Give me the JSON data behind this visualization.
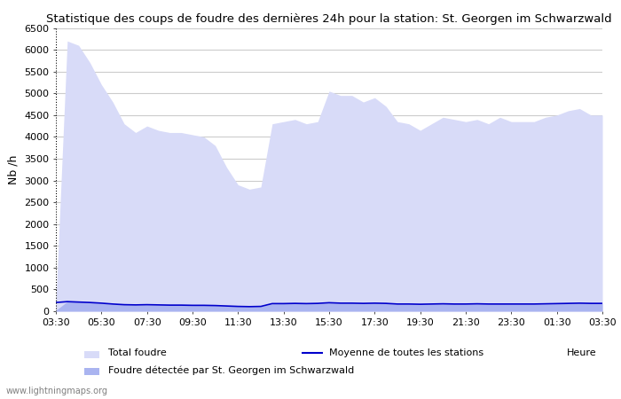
{
  "title": "Statistique des coups de foudre des dernières 24h pour la station: St. Georgen im Schwarzwald",
  "xlabel": "Heure",
  "ylabel": "Nb /h",
  "ylim": [
    0,
    6500
  ],
  "yticks": [
    0,
    500,
    1000,
    1500,
    2000,
    2500,
    3000,
    3500,
    4000,
    4500,
    5000,
    5500,
    6000,
    6500
  ],
  "xtick_labels": [
    "03:30",
    "05:30",
    "07:30",
    "09:30",
    "11:30",
    "13:30",
    "15:30",
    "17:30",
    "19:30",
    "21:30",
    "23:30",
    "01:30",
    "03:30"
  ],
  "bg_color": "#ffffff",
  "plot_bg_color": "#ffffff",
  "grid_color": "#cccccc",
  "fill_total_color": "#d8dbf8",
  "fill_station_color": "#aab4f0",
  "line_moyenne_color": "#0000cc",
  "watermark": "www.lightningmaps.org",
  "legend": {
    "total_foudre": "Total foudre",
    "moyenne": "Moyenne de toutes les stations",
    "station": "Foudre détectée par St. Georgen im Schwarzwald"
  },
  "x_values": [
    0,
    1,
    2,
    3,
    4,
    5,
    6,
    7,
    8,
    9,
    10,
    11,
    12,
    13,
    14,
    15,
    16,
    17,
    18,
    19,
    20,
    21,
    22,
    23,
    24,
    25,
    26,
    27,
    28,
    29,
    30,
    31,
    32,
    33,
    34,
    35,
    36,
    37,
    38,
    39,
    40,
    41,
    42,
    43,
    44,
    45,
    46,
    47,
    48
  ],
  "total_foudre": [
    200,
    6200,
    6100,
    5700,
    5200,
    4800,
    4300,
    4100,
    4250,
    4150,
    4100,
    4100,
    4050,
    4000,
    3800,
    3300,
    2900,
    2800,
    2850,
    4300,
    4350,
    4400,
    4300,
    4350,
    5050,
    4950,
    4950,
    4800,
    4900,
    4700,
    4350,
    4300,
    4150,
    4300,
    4450,
    4400,
    4350,
    4400,
    4300,
    4450,
    4350,
    4350,
    4350,
    4450,
    4500,
    4600,
    4650,
    4500,
    4500
  ],
  "station_foudre": [
    20,
    220,
    210,
    200,
    180,
    160,
    150,
    140,
    145,
    140,
    140,
    135,
    130,
    135,
    130,
    120,
    110,
    100,
    105,
    170,
    175,
    175,
    170,
    175,
    190,
    180,
    185,
    175,
    185,
    175,
    160,
    160,
    155,
    160,
    165,
    165,
    160,
    165,
    160,
    165,
    160,
    160,
    160,
    165,
    170,
    175,
    180,
    175,
    175
  ],
  "moyenne_line": [
    200,
    220,
    210,
    200,
    185,
    165,
    150,
    145,
    150,
    145,
    140,
    140,
    135,
    135,
    130,
    120,
    110,
    105,
    110,
    175,
    175,
    180,
    175,
    180,
    195,
    185,
    185,
    180,
    185,
    180,
    165,
    165,
    160,
    165,
    170,
    165,
    165,
    170,
    165,
    165,
    165,
    165,
    165,
    170,
    175,
    180,
    185,
    180,
    180
  ]
}
